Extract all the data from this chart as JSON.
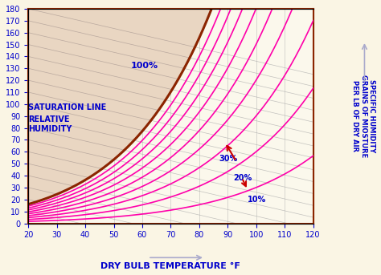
{
  "bg_color": "#FAF5E4",
  "plot_bg_color": "#FAF5E4",
  "border_color": "#8B2500",
  "title": "",
  "xlabel": "DRY BULB TEMPERATURE °F",
  "ylabel_left": "",
  "ylabel_right": "SPECIFIC HUMIDITY\nGRAINS OF MIOSTURE\nPER LB OF DRY AIR",
  "xmin": 20,
  "xmax": 120,
  "ymin": 0,
  "ymax": 180,
  "xticks": [
    20,
    30,
    40,
    50,
    60,
    70,
    80,
    90,
    100,
    110,
    120
  ],
  "yticks": [
    0,
    10,
    20,
    30,
    40,
    50,
    60,
    70,
    80,
    90,
    100,
    110,
    120,
    130,
    140,
    150,
    160,
    170,
    180
  ],
  "rh_levels": [
    0.1,
    0.2,
    0.3,
    0.4,
    0.5,
    0.6,
    0.7,
    0.8,
    0.9,
    1.0
  ],
  "rh_color": "#FF00AA",
  "saturation_color": "#8B2500",
  "diagonal_color": "#AAAAAA",
  "label_color": "#0000CC",
  "arrow_color": "#CC0000",
  "saturation_label": "SATURATION LINE",
  "rh_label": "RELATIVE\nHUMIDITY",
  "label_100": "100%",
  "label_30": "30%",
  "label_20": "20%",
  "label_10": "10%"
}
